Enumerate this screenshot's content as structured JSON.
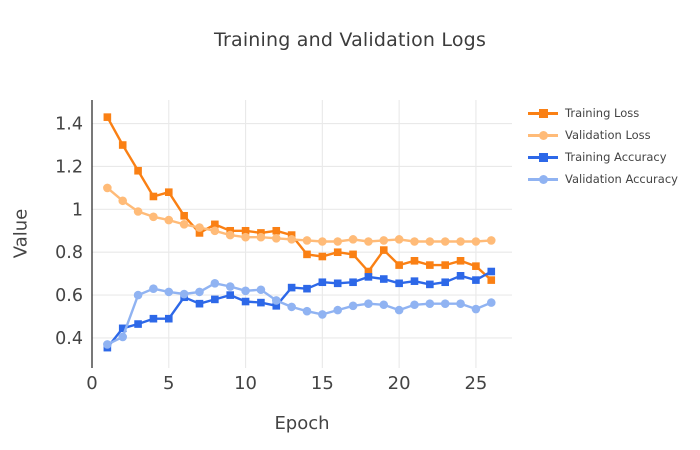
{
  "title": "Training and Validation Logs",
  "axes": {
    "x_label": "Epoch",
    "y_label": "Value",
    "x_ticks": [
      0,
      5,
      10,
      15,
      20,
      25
    ],
    "y_ticks": [
      "1.4",
      "1.2",
      "1",
      "0.8",
      "0.6",
      "0.4"
    ],
    "y_tick_values": [
      1.4,
      1.2,
      1.0,
      0.8,
      0.6,
      0.4
    ]
  },
  "colors": {
    "training_loss": "#fa8014",
    "validation_loss": "#ffbb78",
    "training_accuracy": "#2d68e8",
    "validation_accuracy": "#90b3f2",
    "gridline": "#e9e9e9",
    "axis_line": "#2f2f2f",
    "tick_label": "#444444",
    "title_text": "#3c3c3c"
  },
  "legend": {
    "items": [
      "Training Loss",
      "Validation Loss",
      "Training Accuracy",
      "Validation Accuracy"
    ]
  },
  "chart_data": {
    "type": "line",
    "title": "Training and Validation Logs",
    "xlabel": "Epoch",
    "ylabel": "Value",
    "grid": true,
    "legend_position": "right",
    "x_range": [
      0,
      27.35
    ],
    "y_range": [
      0.26,
      1.51
    ],
    "x": [
      1,
      2,
      3,
      4,
      5,
      6,
      7,
      8,
      9,
      10,
      11,
      12,
      13,
      14,
      15,
      16,
      17,
      18,
      19,
      20,
      21,
      22,
      23,
      24,
      25,
      26
    ],
    "series": [
      {
        "name": "Training Loss",
        "color": "#fa8014",
        "marker": "square",
        "values": [
          1.43,
          1.3,
          1.18,
          1.06,
          1.08,
          0.97,
          0.89,
          0.93,
          0.9,
          0.9,
          0.89,
          0.9,
          0.88,
          0.79,
          0.78,
          0.8,
          0.79,
          0.71,
          0.81,
          0.74,
          0.76,
          0.74,
          0.74,
          0.76,
          0.735,
          0.67
        ]
      },
      {
        "name": "Validation Loss",
        "color": "#ffbb78",
        "marker": "circle",
        "values": [
          1.1,
          1.04,
          0.99,
          0.965,
          0.95,
          0.93,
          0.915,
          0.9,
          0.88,
          0.87,
          0.87,
          0.865,
          0.86,
          0.855,
          0.85,
          0.85,
          0.86,
          0.85,
          0.855,
          0.86,
          0.85,
          0.85,
          0.85,
          0.85,
          0.85,
          0.855
        ]
      },
      {
        "name": "Training Accuracy",
        "color": "#2d68e8",
        "marker": "square",
        "values": [
          0.355,
          0.445,
          0.465,
          0.49,
          0.49,
          0.59,
          0.56,
          0.58,
          0.6,
          0.57,
          0.565,
          0.55,
          0.635,
          0.63,
          0.66,
          0.655,
          0.66,
          0.685,
          0.675,
          0.655,
          0.665,
          0.65,
          0.66,
          0.69,
          0.67,
          0.71
        ]
      },
      {
        "name": "Validation Accuracy",
        "color": "#90b3f2",
        "marker": "circle",
        "values": [
          0.37,
          0.405,
          0.6,
          0.63,
          0.615,
          0.605,
          0.615,
          0.655,
          0.64,
          0.62,
          0.625,
          0.575,
          0.545,
          0.525,
          0.51,
          0.53,
          0.55,
          0.56,
          0.555,
          0.53,
          0.555,
          0.56,
          0.56,
          0.56,
          0.535,
          0.565
        ]
      }
    ]
  }
}
